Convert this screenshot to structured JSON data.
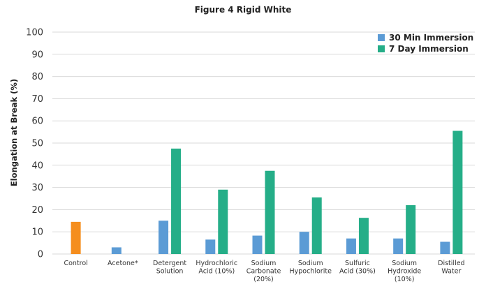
{
  "chart_data": {
    "type": "bar",
    "title": "Figure 4 Rigid White",
    "ylabel": "Elongation at Break (%)",
    "xlabel": "",
    "ylim": [
      0,
      100
    ],
    "yticks": [
      0,
      10,
      20,
      30,
      40,
      50,
      60,
      70,
      80,
      90,
      100
    ],
    "grid": true,
    "legend_position": "top-right",
    "categories": [
      [
        "Control"
      ],
      [
        "Acetone*"
      ],
      [
        "Detergent",
        "Solution"
      ],
      [
        "Hydrochloric",
        "Acid (10%)"
      ],
      [
        "Sodium",
        "Carbonate",
        "(20%)"
      ],
      [
        "Sodium",
        "Hypochlorite"
      ],
      [
        "Sulfuric",
        "Acid (30%)"
      ],
      [
        "Sodium",
        "Hydroxide",
        "(10%)"
      ],
      [
        "Distilled",
        "Water"
      ]
    ],
    "control": {
      "value": 14.5,
      "color": "#F58E1E"
    },
    "series": [
      {
        "name": "30 Min Immersion",
        "color": "#5B9BD5",
        "values": [
          null,
          3,
          15,
          6.5,
          8.3,
          10,
          7,
          7,
          5.5
        ]
      },
      {
        "name": "7 Day Immersion",
        "color": "#25AE88",
        "values": [
          null,
          null,
          47.5,
          29,
          37.5,
          25.5,
          16.3,
          22,
          55.5
        ]
      }
    ]
  }
}
